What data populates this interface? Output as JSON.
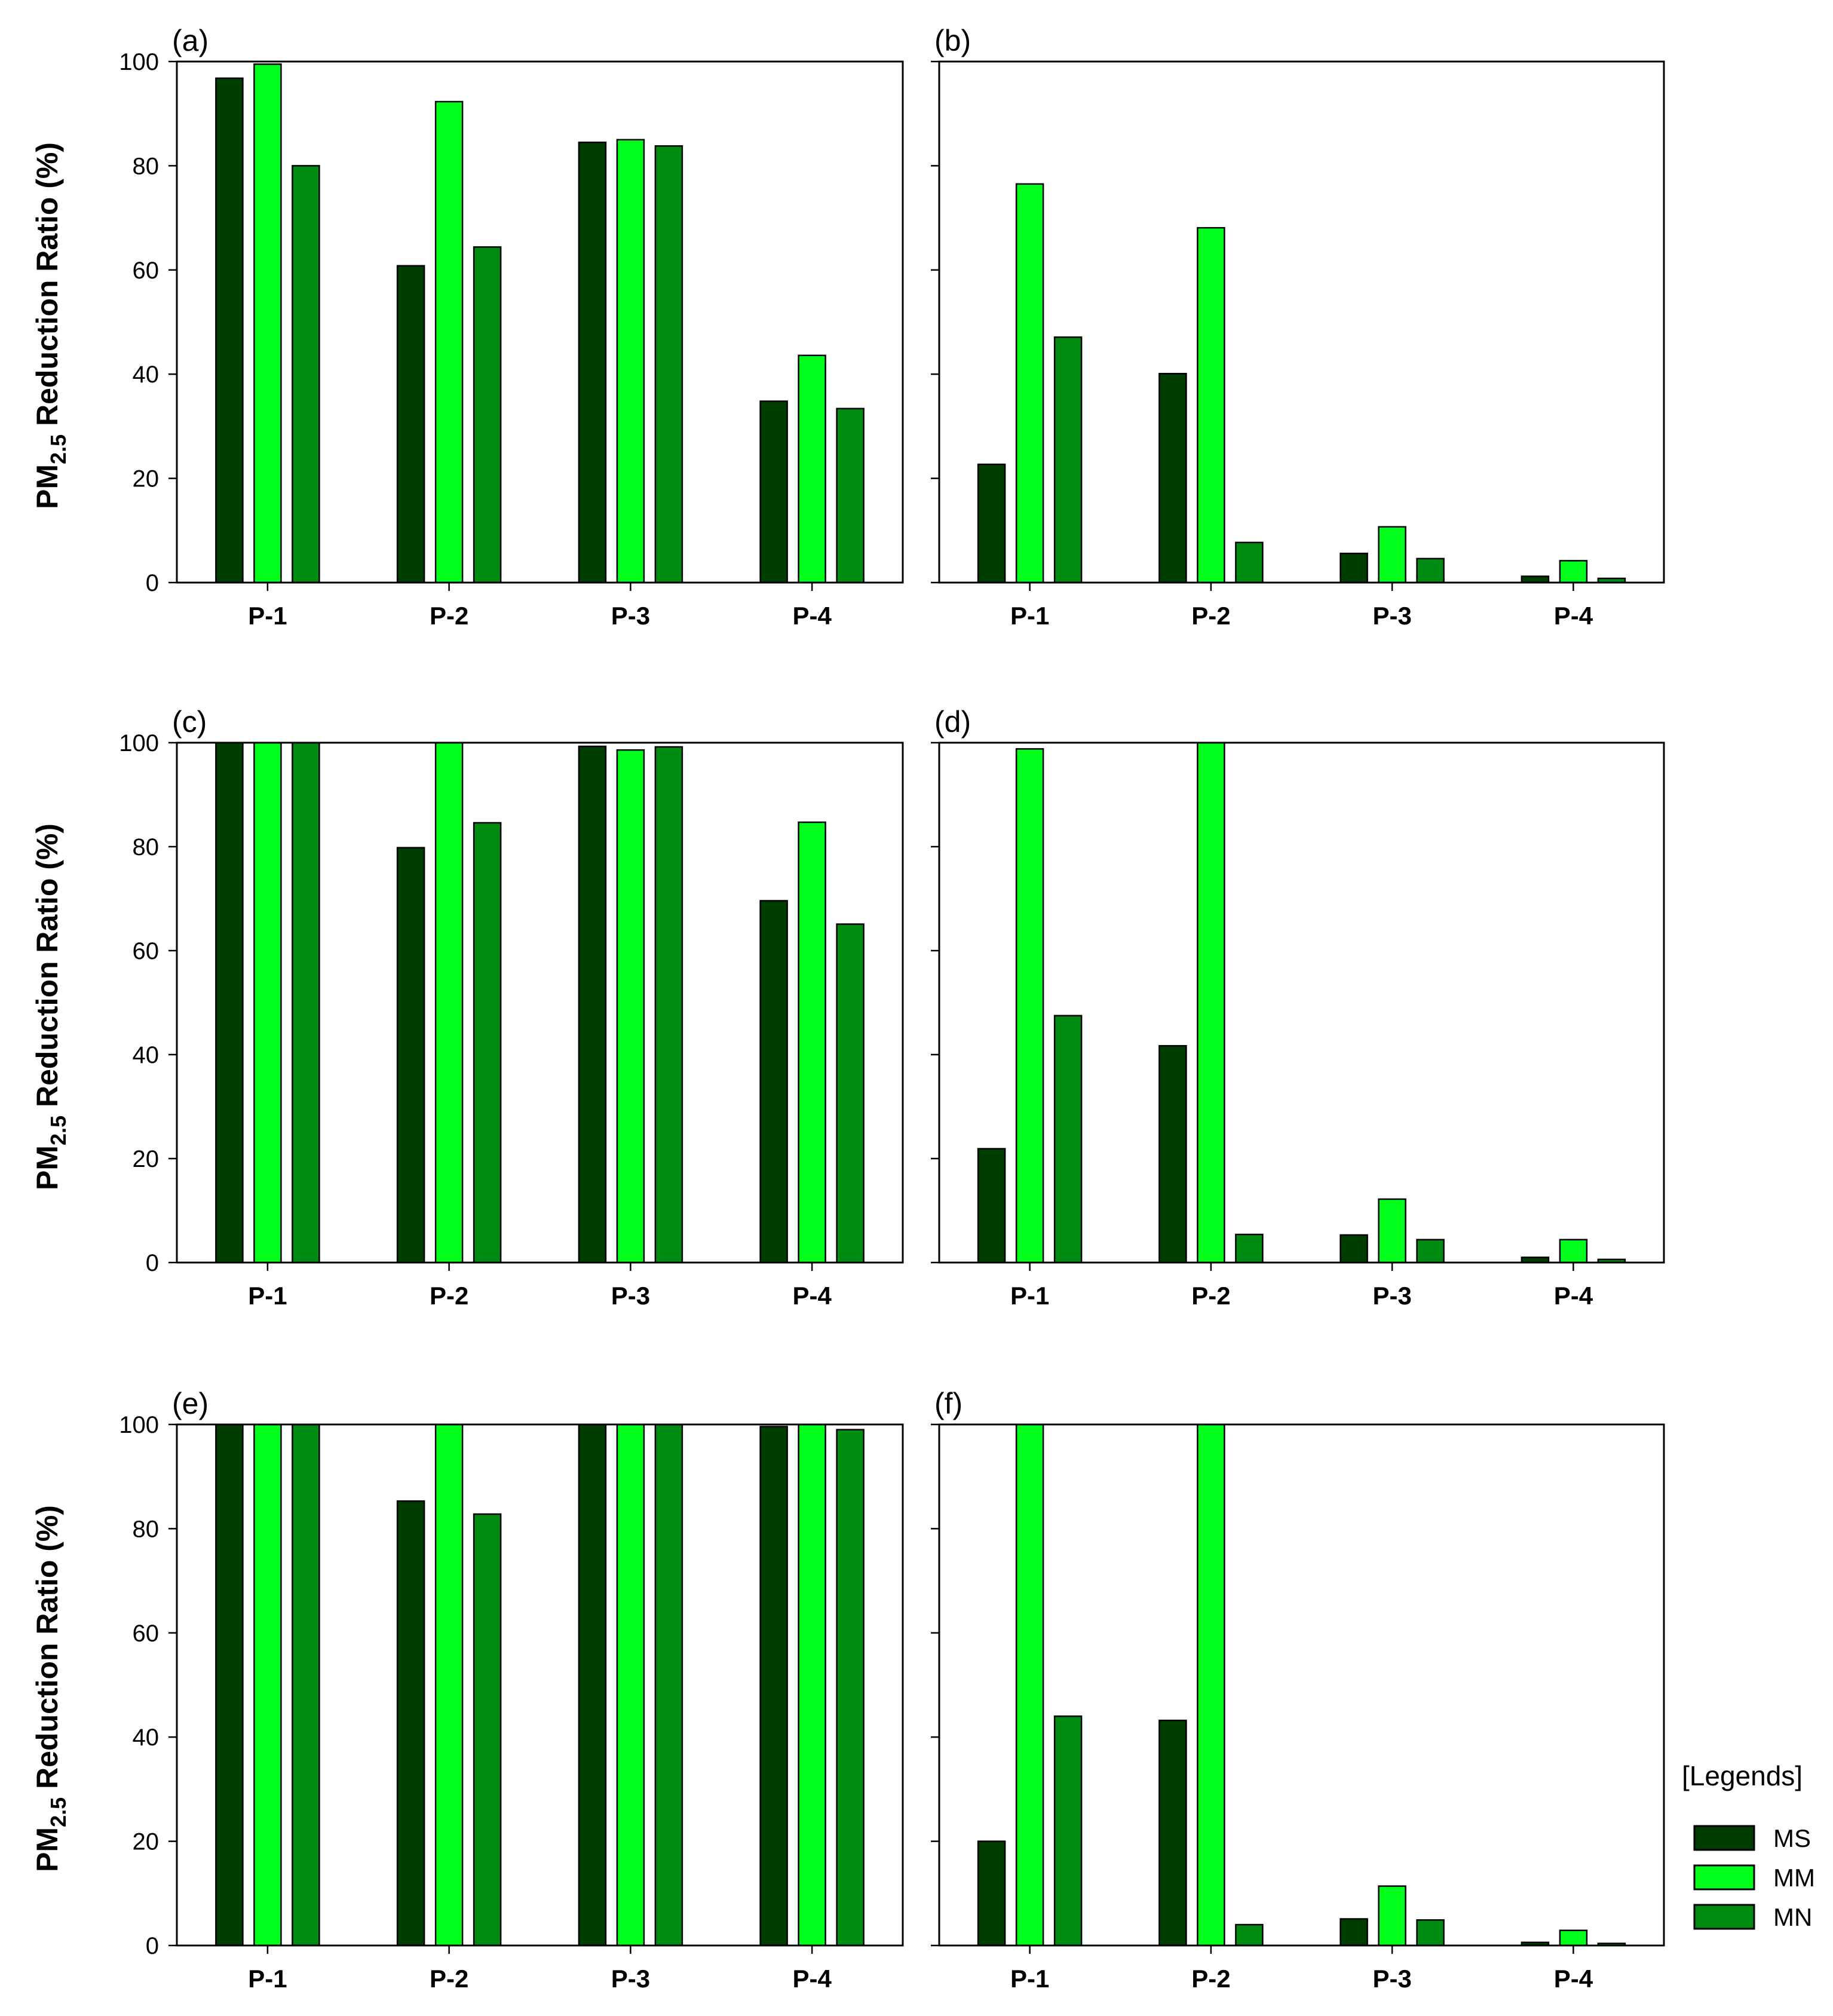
{
  "figure": {
    "ylabel_main": "PM",
    "ylabel_sub": "2.5",
    "ylabel_rest": " Reduction Ratio (%)"
  },
  "legend": {
    "title": "[Legends]",
    "items": [
      {
        "label": "MS",
        "color": "#003d00"
      },
      {
        "label": "MM",
        "color": "#00ff1a"
      },
      {
        "label": "MN",
        "color": "#008c12"
      }
    ]
  },
  "chart_data": [
    {
      "type": "bar",
      "panel": "(a)",
      "categories": [
        "P-1",
        "P-2",
        "P-3",
        "P-4"
      ],
      "series": [
        {
          "name": "MS",
          "values": [
            96.8,
            60.8,
            84.5,
            34.8
          ]
        },
        {
          "name": "MM",
          "values": [
            99.5,
            92.3,
            85.0,
            43.6
          ]
        },
        {
          "name": "MN",
          "values": [
            80.0,
            64.4,
            83.8,
            33.4
          ]
        }
      ],
      "ylim": [
        0,
        100
      ],
      "yticks": [
        0,
        20,
        40,
        60,
        80,
        100
      ],
      "show_ytick_labels": true
    },
    {
      "type": "bar",
      "panel": "(b)",
      "categories": [
        "P-1",
        "P-2",
        "P-3",
        "P-4"
      ],
      "series": [
        {
          "name": "MS",
          "values": [
            22.7,
            40.1,
            5.6,
            1.2
          ]
        },
        {
          "name": "MM",
          "values": [
            76.5,
            68.1,
            10.7,
            4.2
          ]
        },
        {
          "name": "MN",
          "values": [
            47.1,
            7.7,
            4.6,
            0.8
          ]
        }
      ],
      "ylim": [
        0,
        100
      ],
      "yticks": [
        0,
        20,
        40,
        60,
        80,
        100
      ],
      "show_ytick_labels": false
    },
    {
      "type": "bar",
      "panel": "(c)",
      "categories": [
        "P-1",
        "P-2",
        "P-3",
        "P-4"
      ],
      "series": [
        {
          "name": "MS",
          "values": [
            100,
            79.8,
            99.3,
            69.6
          ]
        },
        {
          "name": "MM",
          "values": [
            100,
            100,
            98.6,
            84.7
          ]
        },
        {
          "name": "MN",
          "values": [
            100,
            84.6,
            99.2,
            65.1
          ]
        }
      ],
      "ylim": [
        0,
        100
      ],
      "yticks": [
        0,
        20,
        40,
        60,
        80,
        100
      ],
      "show_ytick_labels": true
    },
    {
      "type": "bar",
      "panel": "(d)",
      "categories": [
        "P-1",
        "P-2",
        "P-3",
        "P-4"
      ],
      "series": [
        {
          "name": "MS",
          "values": [
            21.9,
            41.7,
            5.3,
            1.0
          ]
        },
        {
          "name": "MM",
          "values": [
            98.8,
            100,
            12.2,
            4.4
          ]
        },
        {
          "name": "MN",
          "values": [
            47.5,
            5.4,
            4.4,
            0.6
          ]
        }
      ],
      "ylim": [
        0,
        100
      ],
      "yticks": [
        0,
        20,
        40,
        60,
        80,
        100
      ],
      "show_ytick_labels": false
    },
    {
      "type": "bar",
      "panel": "(e)",
      "categories": [
        "P-1",
        "P-2",
        "P-3",
        "P-4"
      ],
      "series": [
        {
          "name": "MS",
          "values": [
            100,
            85.3,
            100,
            99.6
          ]
        },
        {
          "name": "MM",
          "values": [
            100,
            100,
            100,
            100
          ]
        },
        {
          "name": "MN",
          "values": [
            100,
            82.8,
            100,
            99.0
          ]
        }
      ],
      "ylim": [
        0,
        100
      ],
      "yticks": [
        0,
        20,
        40,
        60,
        80,
        100
      ],
      "show_ytick_labels": true
    },
    {
      "type": "bar",
      "panel": "(f)",
      "categories": [
        "P-1",
        "P-2",
        "P-3",
        "P-4"
      ],
      "series": [
        {
          "name": "MS",
          "values": [
            20.0,
            43.2,
            5.1,
            0.6
          ]
        },
        {
          "name": "MM",
          "values": [
            100,
            100,
            11.4,
            2.9
          ]
        },
        {
          "name": "MN",
          "values": [
            44.0,
            4.0,
            4.9,
            0.4
          ]
        }
      ],
      "ylim": [
        0,
        100
      ],
      "yticks": [
        0,
        20,
        40,
        60,
        80,
        100
      ],
      "show_ytick_labels": false
    }
  ]
}
